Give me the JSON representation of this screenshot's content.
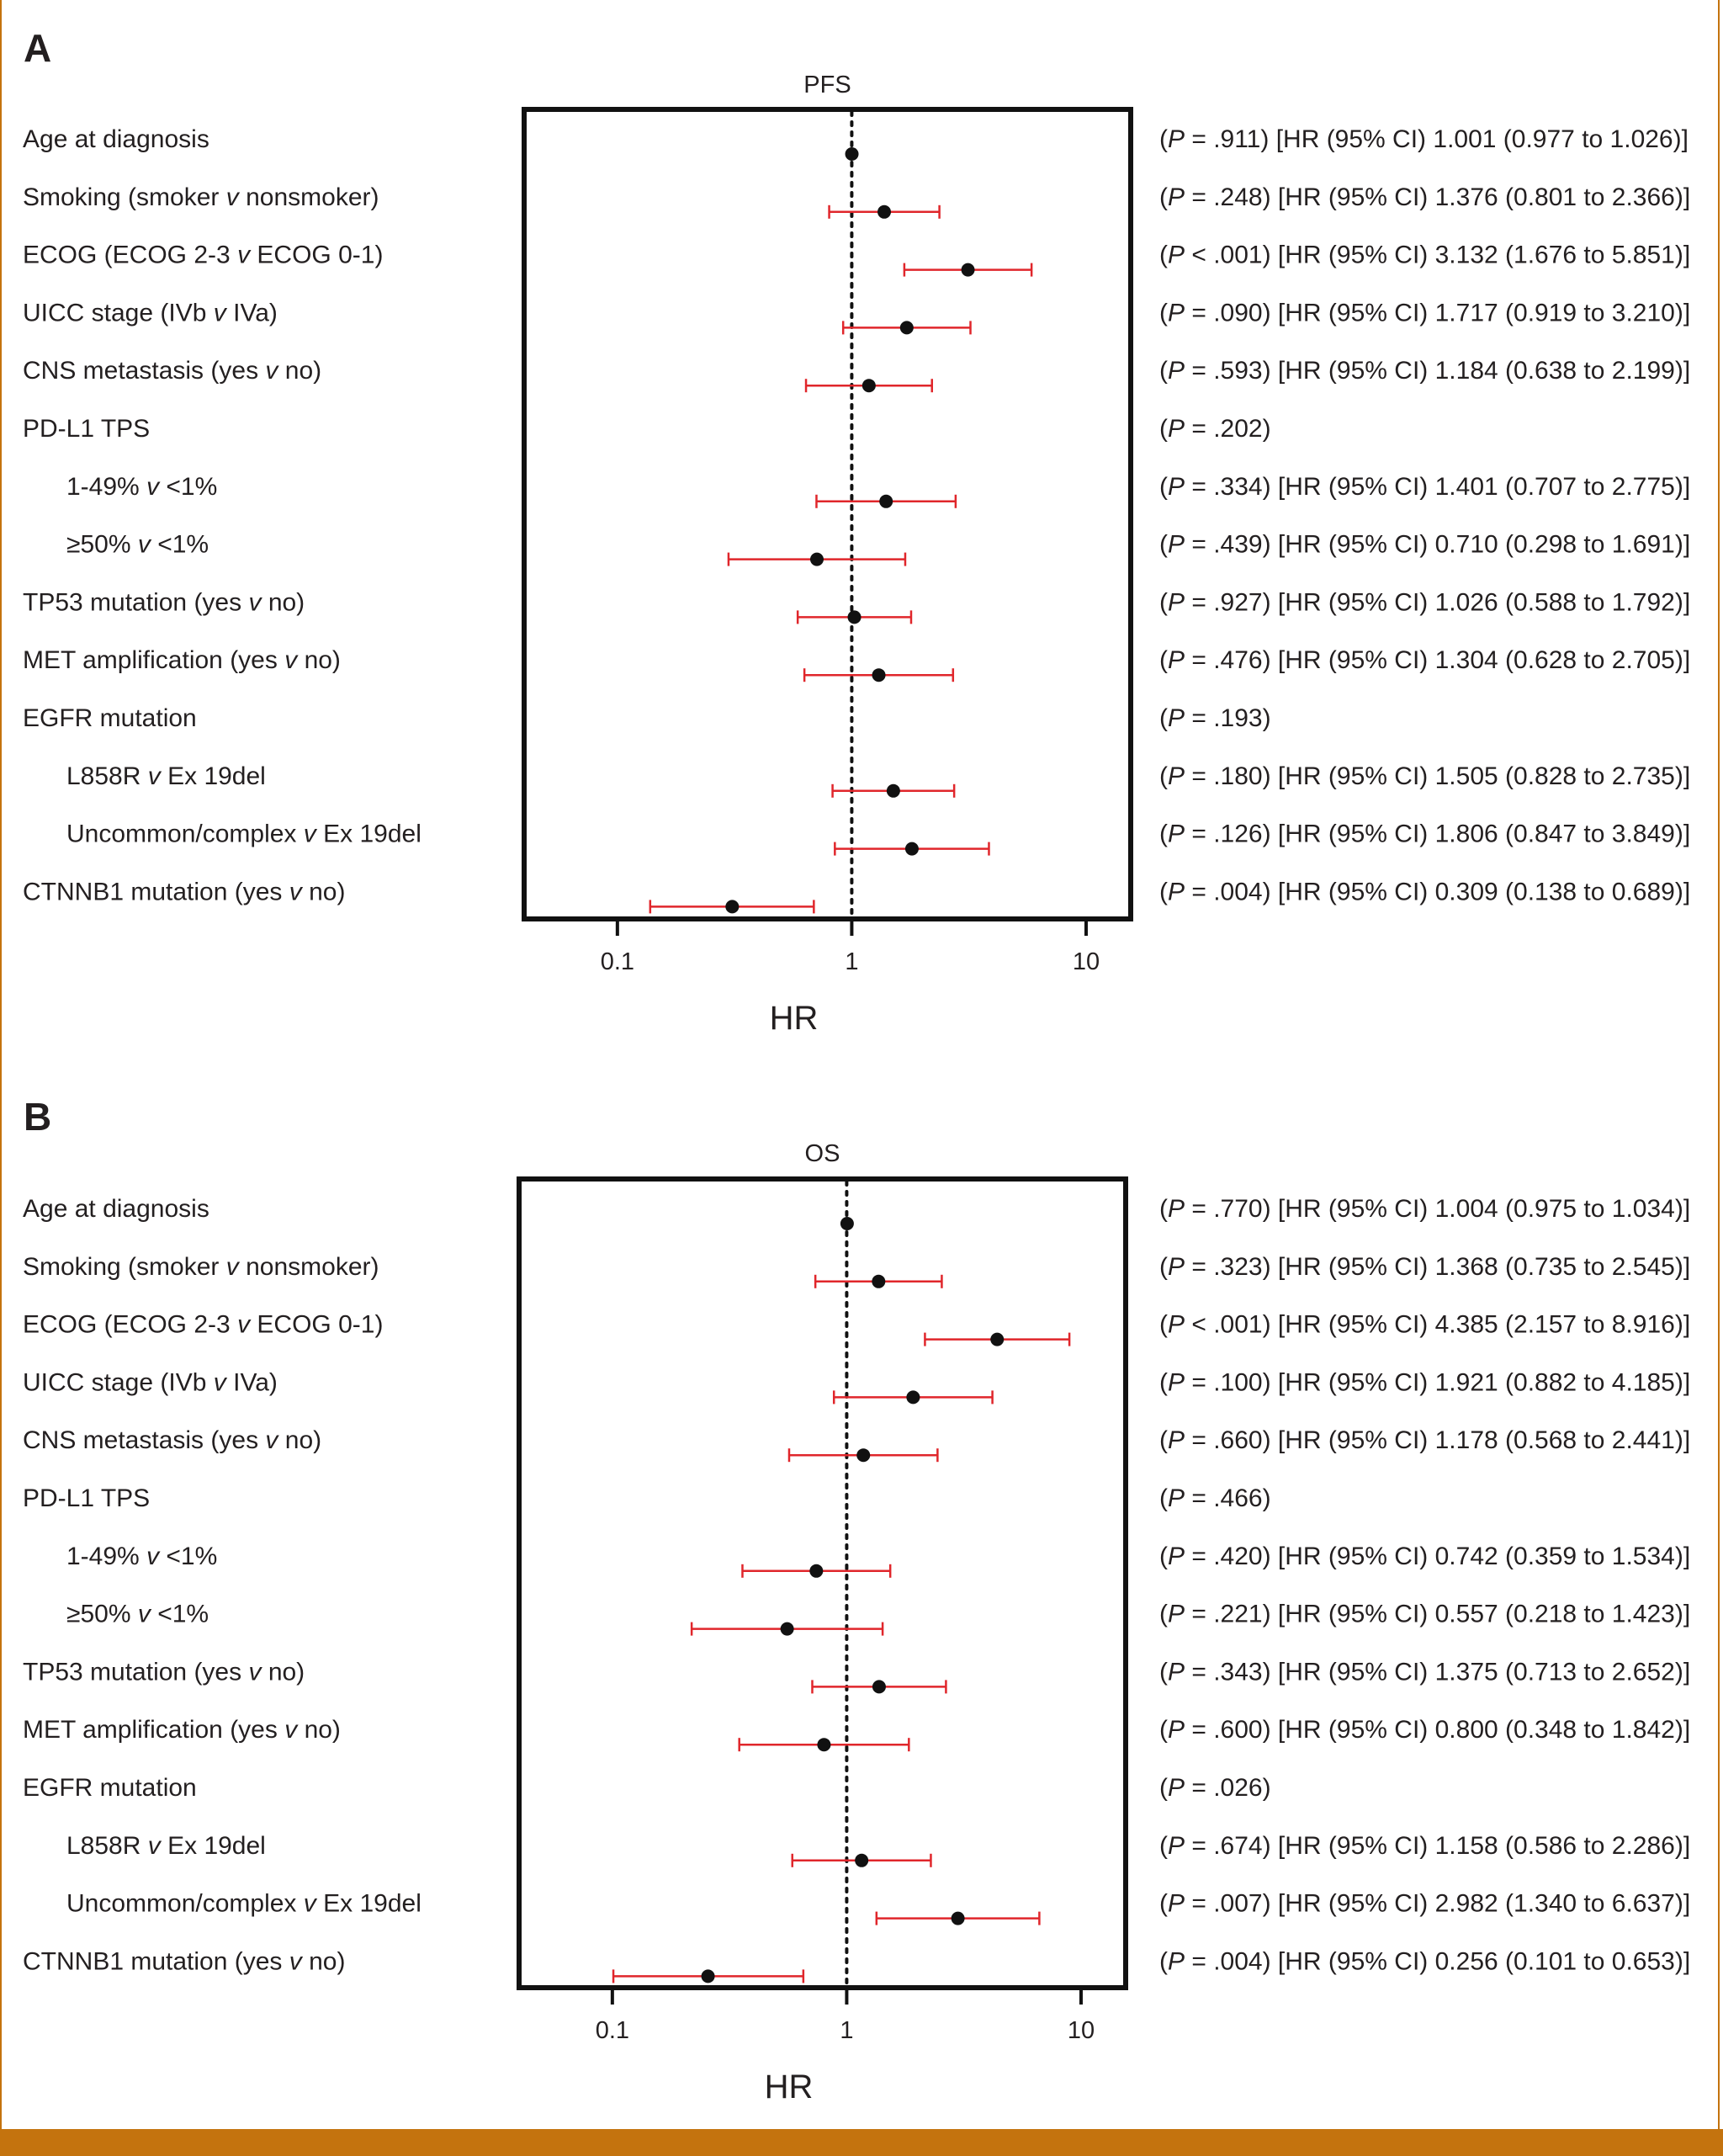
{
  "colors": {
    "border": "#c4730e",
    "ci": "#e0262b",
    "point": "#111111",
    "text": "#231f20"
  },
  "chart_data": [
    {
      "type": "forest",
      "panel_label": "A",
      "title": "PFS",
      "xlabel": "HR",
      "xscale": "log",
      "xlim": [
        0.04,
        15.5
      ],
      "ticks": [
        "0.1",
        "1",
        "10"
      ],
      "tick_values": [
        0.1,
        1,
        10
      ],
      "rows": [
        {
          "label": "Age at diagnosis",
          "p": ".911",
          "p_op": "=",
          "hr_text": "[HR (95% CI) 1.001 (0.977 to 1.026)]",
          "hr": 1.001,
          "lo": 0.977,
          "hi": 1.026
        },
        {
          "label": "Smoking (smoker v nonsmoker)",
          "p": ".248",
          "p_op": "=",
          "hr_text": "[HR (95% CI) 1.376 (0.801 to 2.366)]",
          "hr": 1.376,
          "lo": 0.801,
          "hi": 2.366
        },
        {
          "label": "ECOG (ECOG 2-3 v ECOG 0-1)",
          "p": "< .001",
          "p_op": "",
          "hr_text": "[HR (95% CI) 3.132 (1.676 to 5.851)]",
          "hr": 3.132,
          "lo": 1.676,
          "hi": 5.851
        },
        {
          "label": "UICC stage (IVb v IVa)",
          "p": ".090",
          "p_op": "=",
          "hr_text": "[HR (95% CI) 1.717 (0.919 to 3.210)]",
          "hr": 1.717,
          "lo": 0.919,
          "hi": 3.21
        },
        {
          "label": "CNS metastasis (yes v no)",
          "p": ".593",
          "p_op": "=",
          "hr_text": "[HR (95% CI) 1.184 (0.638 to 2.199)]",
          "hr": 1.184,
          "lo": 0.638,
          "hi": 2.199
        },
        {
          "label": "PD-L1 TPS",
          "p": ".202",
          "p_op": "=",
          "hr_text": "",
          "hr": null,
          "lo": null,
          "hi": null
        },
        {
          "label": "1-49% v <1%",
          "indent": true,
          "p": ".334",
          "p_op": "=",
          "hr_text": "[HR (95% CI) 1.401 (0.707 to 2.775)]",
          "hr": 1.401,
          "lo": 0.707,
          "hi": 2.775
        },
        {
          "label": "≥50% v <1%",
          "indent": true,
          "p": ".439",
          "p_op": "=",
          "hr_text": "[HR (95% CI) 0.710 (0.298 to 1.691)]",
          "hr": 0.71,
          "lo": 0.298,
          "hi": 1.691
        },
        {
          "label": "TP53 mutation (yes v no)",
          "p": ".927",
          "p_op": "=",
          "hr_text": "[HR (95% CI) 1.026 (0.588 to 1.792)]",
          "hr": 1.026,
          "lo": 0.588,
          "hi": 1.792
        },
        {
          "label": "MET amplification (yes v no)",
          "p": ".476",
          "p_op": "=",
          "hr_text": "[HR (95% CI) 1.304 (0.628 to 2.705)]",
          "hr": 1.304,
          "lo": 0.628,
          "hi": 2.705
        },
        {
          "label": "EGFR mutation",
          "p": ".193",
          "p_op": "=",
          "hr_text": "",
          "hr": null,
          "lo": null,
          "hi": null
        },
        {
          "label": "L858R v Ex 19del",
          "indent": true,
          "p": ".180",
          "p_op": "=",
          "hr_text": "[HR (95% CI) 1.505 (0.828 to 2.735)]",
          "hr": 1.505,
          "lo": 0.828,
          "hi": 2.735
        },
        {
          "label": "Uncommon/complex v Ex 19del",
          "indent": true,
          "p": ".126",
          "p_op": "=",
          "hr_text": "[HR (95% CI) 1.806 (0.847 to 3.849)]",
          "hr": 1.806,
          "lo": 0.847,
          "hi": 3.849
        },
        {
          "label": "CTNNB1 mutation (yes v no)",
          "p": ".004",
          "p_op": "=",
          "hr_text": "[HR (95% CI) 0.309 (0.138 to 0.689)]",
          "hr": 0.309,
          "lo": 0.138,
          "hi": 0.689
        }
      ]
    },
    {
      "type": "forest",
      "panel_label": "B",
      "title": "OS",
      "xlabel": "HR",
      "xscale": "log",
      "xlim": [
        0.04,
        15.5
      ],
      "ticks": [
        "0.1",
        "1",
        "10"
      ],
      "tick_values": [
        0.1,
        1,
        10
      ],
      "rows": [
        {
          "label": "Age at diagnosis",
          "p": ".770",
          "p_op": "=",
          "hr_text": "[HR (95% CI) 1.004 (0.975 to 1.034)]",
          "hr": 1.004,
          "lo": 0.975,
          "hi": 1.034
        },
        {
          "label": "Smoking (smoker v nonsmoker)",
          "p": ".323",
          "p_op": "=",
          "hr_text": "[HR (95% CI) 1.368 (0.735 to 2.545)]",
          "hr": 1.368,
          "lo": 0.735,
          "hi": 2.545
        },
        {
          "label": "ECOG (ECOG 2-3 v ECOG 0-1)",
          "p": "< .001",
          "p_op": "",
          "hr_text": "[HR (95% CI) 4.385 (2.157 to 8.916)]",
          "hr": 4.385,
          "lo": 2.157,
          "hi": 8.916
        },
        {
          "label": "UICC stage (IVb v IVa)",
          "p": ".100",
          "p_op": "=",
          "hr_text": "[HR (95% CI) 1.921 (0.882 to 4.185)]",
          "hr": 1.921,
          "lo": 0.882,
          "hi": 4.185
        },
        {
          "label": "CNS metastasis (yes v no)",
          "p": ".660",
          "p_op": "=",
          "hr_text": "[HR (95% CI) 1.178 (0.568 to 2.441)]",
          "hr": 1.178,
          "lo": 0.568,
          "hi": 2.441
        },
        {
          "label": "PD-L1 TPS",
          "p": ".466",
          "p_op": "=",
          "hr_text": "",
          "hr": null,
          "lo": null,
          "hi": null
        },
        {
          "label": "1-49% v <1%",
          "indent": true,
          "p": ".420",
          "p_op": "=",
          "hr_text": "[HR (95% CI) 0.742 (0.359 to 1.534)]",
          "hr": 0.742,
          "lo": 0.359,
          "hi": 1.534
        },
        {
          "label": "≥50% v <1%",
          "indent": true,
          "p": ".221",
          "p_op": "=",
          "hr_text": "[HR (95% CI) 0.557 (0.218 to 1.423)]",
          "hr": 0.557,
          "lo": 0.218,
          "hi": 1.423
        },
        {
          "label": "TP53 mutation (yes v no)",
          "p": ".343",
          "p_op": "=",
          "hr_text": "[HR (95% CI) 1.375 (0.713 to 2.652)]",
          "hr": 1.375,
          "lo": 0.713,
          "hi": 2.652
        },
        {
          "label": "MET amplification (yes v no)",
          "p": ".600",
          "p_op": "=",
          "hr_text": "[HR (95% CI) 0.800 (0.348 to 1.842)]",
          "hr": 0.8,
          "lo": 0.348,
          "hi": 1.842
        },
        {
          "label": "EGFR mutation",
          "p": ".026",
          "p_op": "=",
          "hr_text": "",
          "hr": null,
          "lo": null,
          "hi": null
        },
        {
          "label": "L858R v Ex 19del",
          "indent": true,
          "p": ".674",
          "p_op": "=",
          "hr_text": "[HR (95% CI) 1.158 (0.586 to 2.286)]",
          "hr": 1.158,
          "lo": 0.586,
          "hi": 2.286
        },
        {
          "label": "Uncommon/complex v Ex 19del",
          "indent": true,
          "p": ".007",
          "p_op": "=",
          "hr_text": "[HR (95% CI) 2.982 (1.340 to 6.637)]",
          "hr": 2.982,
          "lo": 1.34,
          "hi": 6.637
        },
        {
          "label": "CTNNB1 mutation (yes v no)",
          "p": ".004",
          "p_op": "=",
          "hr_text": "[HR (95% CI) 0.256 (0.101 to 0.653)]",
          "hr": 0.256,
          "lo": 0.101,
          "hi": 0.653
        }
      ]
    }
  ]
}
